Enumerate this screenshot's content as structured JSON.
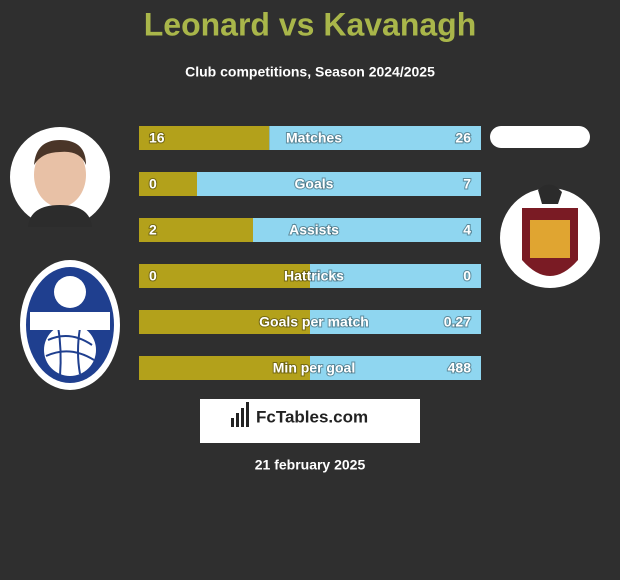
{
  "header": {
    "title": "Leonard vs Kavanagh",
    "subtitle": "Club competitions, Season 2024/2025"
  },
  "rows": [
    {
      "label": "Matches",
      "left": 16,
      "right": 26
    },
    {
      "label": "Goals",
      "left": 0,
      "right": 7
    },
    {
      "label": "Assists",
      "left": 2,
      "right": 4
    },
    {
      "label": "Hattricks",
      "left": 0,
      "right": 0
    },
    {
      "label": "Goals per match",
      "right": 0.27
    },
    {
      "label": "Min per goal",
      "right": 488
    }
  ],
  "footer": {
    "brand": "FcTables.com",
    "date": "21 february 2025"
  }
}
